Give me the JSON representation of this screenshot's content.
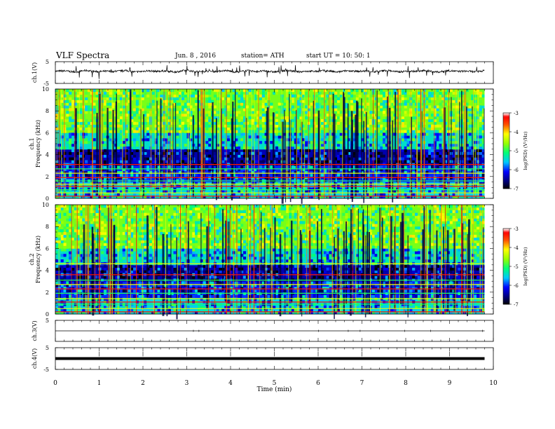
{
  "header": {
    "title": "VLF  Spectra",
    "date": "Jun. 8  , 2016",
    "station": "station= ATH",
    "start": "start  UT  =   10: 50: 1"
  },
  "chart_data": [
    {
      "type": "line",
      "ylabel": "ch.1(V)",
      "ylim": [
        -5,
        5
      ],
      "yticks": [
        "5",
        "-5"
      ],
      "baseline_v": 0.6,
      "spike_range_v": [
        -3,
        3.5
      ]
    },
    {
      "type": "heatmap",
      "ylabel_top": "ch.1",
      "ylabel": "Frequency  (kHz)",
      "ylim": [
        0,
        10
      ],
      "yticks": [
        "0",
        "2",
        "4",
        "6",
        "8",
        "10"
      ],
      "colorbar": {
        "label": "log(PSD) (V²/Hz)",
        "range": [
          -7,
          -3
        ],
        "ticks": [
          "-7",
          "-6",
          "-5",
          "-4",
          "-3"
        ]
      },
      "bands_khz": [
        0.2,
        0.5,
        0.8,
        1.1,
        1.3,
        1.6,
        1.9,
        2.3,
        2.7,
        3.1
      ]
    },
    {
      "type": "heatmap",
      "ylabel_top": "ch.2",
      "ylabel": "Frequency  (kHz)",
      "ylim": [
        0,
        10
      ],
      "yticks": [
        "0",
        "2",
        "4",
        "6",
        "8",
        "10"
      ],
      "colorbar": {
        "label": "log(PSD) (V²/Hz)",
        "range": [
          -7,
          -3
        ],
        "ticks": [
          "-7",
          "-6",
          "-5",
          "-4",
          "-3"
        ]
      },
      "bands_khz": [
        0.2,
        0.5,
        0.9,
        1.1,
        1.4,
        1.9,
        2.3,
        2.7,
        3.1,
        3.6,
        4.6
      ]
    },
    {
      "type": "line",
      "ylabel": "ch.3(V)",
      "ylim": [
        -5,
        5
      ],
      "yticks": [
        "5"
      ],
      "baseline_v": 0
    },
    {
      "type": "line",
      "ylabel": "ch.4(V)",
      "ylim": [
        -5,
        5
      ],
      "yticks": [
        "5",
        "-5"
      ],
      "baseline_v": 0
    }
  ],
  "xaxis": {
    "label": "Time  (min)",
    "xlim": [
      0,
      10
    ],
    "ticks": [
      "0",
      "1",
      "2",
      "3",
      "4",
      "5",
      "6",
      "7",
      "8",
      "9",
      "10"
    ],
    "data_end_min": 9.8
  },
  "colors": {
    "trace": "#000000",
    "axis": "#000000",
    "colormap": [
      "#000000",
      "#00007f",
      "#0000ff",
      "#00ffff",
      "#00ff00",
      "#ffff00",
      "#ff0000",
      "#ffffff"
    ]
  }
}
